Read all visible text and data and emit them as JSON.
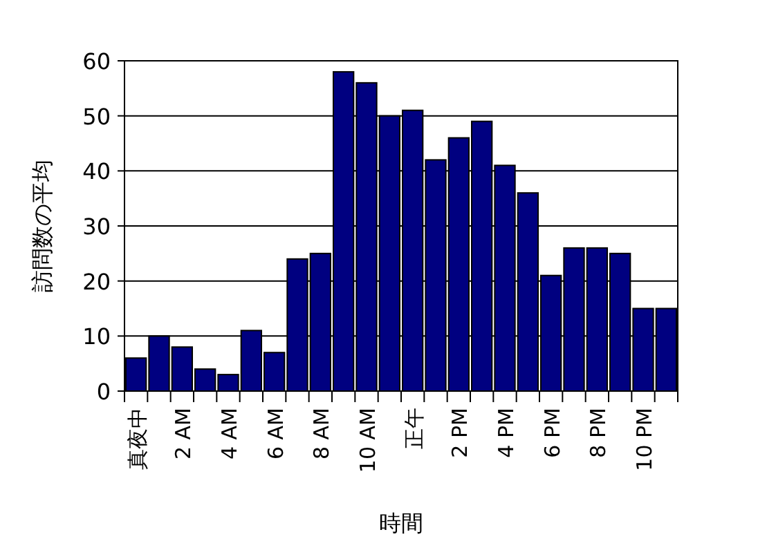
{
  "chart_data": {
    "type": "bar",
    "xlabel": "時間",
    "ylabel": "訪問数の平均",
    "categories": [
      "真夜中",
      null,
      "2 AM",
      null,
      "4 AM",
      null,
      "6 AM",
      null,
      "8 AM",
      null,
      "10 AM",
      null,
      "正午",
      null,
      "2 PM",
      null,
      "4 PM",
      null,
      "6 PM",
      null,
      "8 PM",
      null,
      "10 PM",
      null
    ],
    "values": [
      6,
      10,
      8,
      4,
      3,
      11,
      7,
      24,
      25,
      58,
      56,
      50,
      51,
      42,
      46,
      49,
      41,
      36,
      21,
      26,
      26,
      25,
      15,
      15
    ],
    "color": "#000080",
    "ylim": [
      0,
      60
    ],
    "yticks": [
      0,
      10,
      20,
      30,
      40,
      50,
      60
    ],
    "grid": "y"
  }
}
